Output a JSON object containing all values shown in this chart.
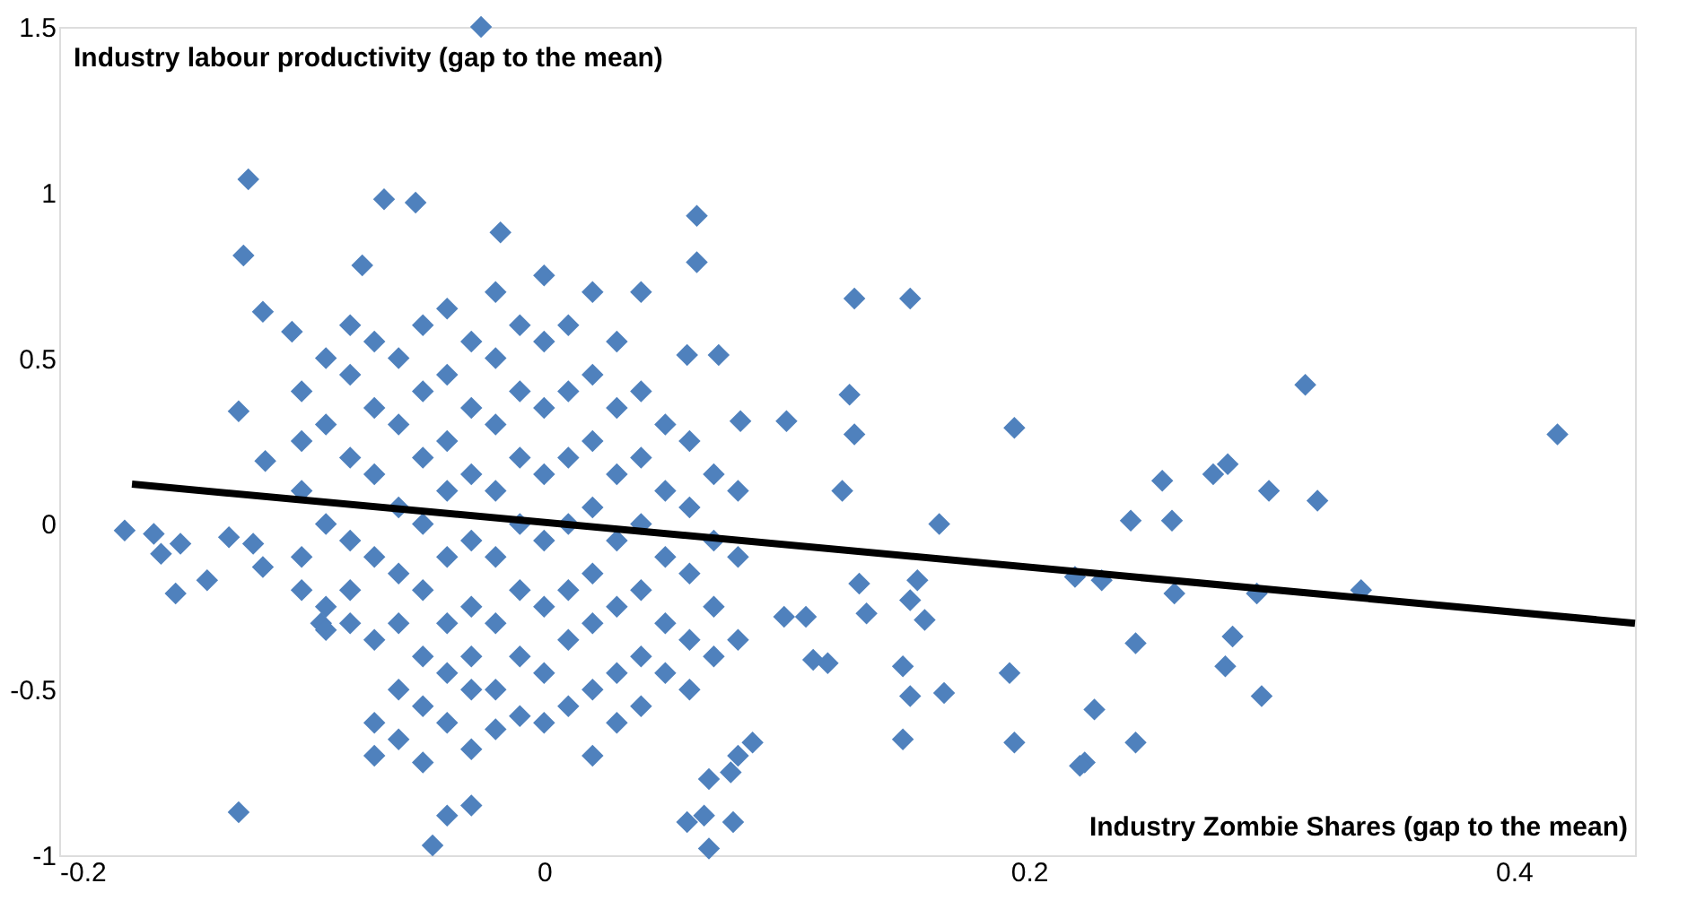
{
  "chart_data": {
    "type": "scatter",
    "xlabel": "Industry Zombie Shares (gap to the mean)",
    "ylabel": "Industry labour productivity  (gap to the mean)",
    "xlim": [
      -0.2,
      0.45
    ],
    "ylim": [
      -1,
      1.5
    ],
    "xticks": [
      -0.2,
      0,
      0.2,
      0.4
    ],
    "yticks": [
      -1,
      -0.5,
      0,
      0.5,
      1,
      1.5
    ],
    "grid": false,
    "series": [
      {
        "marker": "diamond",
        "color": "#4f81bd",
        "x": [
          -0.026,
          -0.122,
          -0.124,
          -0.066,
          -0.053,
          -0.018,
          0.063,
          0.063,
          -0.075,
          -0.116,
          -0.104,
          0.128,
          0.151,
          0.126,
          0.128,
          0.194,
          0.081,
          0.1,
          0.059,
          0.072,
          0.123,
          0.163,
          0.13,
          0.133,
          0.154,
          0.157,
          0.151,
          0.148,
          0.151,
          0.165,
          0.148,
          0.192,
          0.194,
          0.117,
          0.111,
          0.099,
          0.108,
          0.086,
          0.077,
          0.08,
          0.068,
          0.066,
          0.059,
          0.068,
          0.078,
          -0.046,
          -0.126,
          -0.04,
          -0.03,
          0.314,
          0.418,
          0.255,
          0.276,
          0.282,
          0.299,
          0.319,
          0.242,
          0.259,
          0.219,
          0.23,
          0.26,
          0.294,
          0.337,
          0.244,
          0.284,
          0.281,
          0.296,
          0.227,
          0.244,
          0.223,
          0.221,
          -0.173,
          -0.161,
          -0.15,
          -0.158,
          -0.152,
          -0.139,
          -0.13,
          -0.12,
          -0.116,
          -0.126,
          -0.115,
          -0.092,
          -0.1,
          -0.1,
          -0.1,
          -0.1,
          -0.1,
          -0.09,
          -0.09,
          -0.09,
          -0.09,
          -0.09,
          -0.08,
          -0.08,
          -0.08,
          -0.08,
          -0.08,
          -0.08,
          -0.07,
          -0.07,
          -0.07,
          -0.07,
          -0.07,
          -0.07,
          -0.07,
          -0.06,
          -0.06,
          -0.06,
          -0.06,
          -0.06,
          -0.06,
          -0.06,
          -0.05,
          -0.05,
          -0.05,
          -0.05,
          -0.05,
          -0.05,
          -0.05,
          -0.05,
          -0.04,
          -0.04,
          -0.04,
          -0.04,
          -0.04,
          -0.04,
          -0.04,
          -0.04,
          -0.03,
          -0.03,
          -0.03,
          -0.03,
          -0.03,
          -0.03,
          -0.03,
          -0.03,
          -0.02,
          -0.02,
          -0.02,
          -0.02,
          -0.02,
          -0.02,
          -0.02,
          -0.02,
          -0.01,
          -0.01,
          -0.01,
          -0.01,
          -0.01,
          -0.01,
          -0.01,
          0,
          0,
          0,
          0,
          0,
          0,
          0,
          0,
          0.01,
          0.01,
          0.01,
          0.01,
          0.01,
          0.01,
          0.01,
          0.02,
          0.02,
          0.02,
          0.02,
          0.02,
          0.02,
          0.02,
          0.02,
          0.03,
          0.03,
          0.03,
          0.03,
          0.03,
          0.03,
          0.03,
          0.04,
          0.04,
          0.04,
          0.04,
          0.04,
          0.04,
          0.04,
          0.05,
          0.05,
          0.05,
          0.05,
          0.05,
          0.06,
          0.06,
          0.06,
          0.06,
          0.06,
          0.07,
          0.07,
          0.07,
          0.07,
          0.08,
          0.08,
          0.08
        ],
        "values": [
          1.5,
          1.04,
          0.81,
          0.98,
          0.97,
          0.88,
          0.93,
          0.79,
          0.78,
          0.64,
          0.58,
          0.68,
          0.68,
          0.39,
          0.27,
          0.29,
          0.31,
          0.31,
          0.51,
          0.51,
          0.1,
          0.0,
          -0.18,
          -0.27,
          -0.17,
          -0.29,
          -0.23,
          -0.43,
          -0.52,
          -0.51,
          -0.65,
          -0.45,
          -0.66,
          -0.42,
          -0.41,
          -0.28,
          -0.28,
          -0.66,
          -0.75,
          -0.7,
          -0.77,
          -0.88,
          -0.9,
          -0.98,
          -0.9,
          -0.97,
          -0.87,
          -0.88,
          -0.85,
          0.42,
          0.27,
          0.13,
          0.15,
          0.18,
          0.1,
          0.07,
          0.01,
          0.01,
          -0.16,
          -0.17,
          -0.21,
          -0.21,
          -0.2,
          -0.36,
          -0.34,
          -0.43,
          -0.52,
          -0.56,
          -0.66,
          -0.72,
          -0.73,
          -0.02,
          -0.03,
          -0.06,
          -0.09,
          -0.21,
          -0.17,
          -0.04,
          -0.06,
          -0.13,
          0.34,
          0.19,
          -0.3,
          0.4,
          0.25,
          0.1,
          -0.1,
          -0.2,
          0.5,
          0.3,
          0.0,
          -0.25,
          -0.32,
          0.6,
          0.45,
          0.2,
          -0.05,
          -0.2,
          -0.3,
          0.55,
          0.35,
          0.15,
          -0.1,
          -0.35,
          -0.6,
          -0.7,
          0.5,
          0.3,
          0.05,
          -0.15,
          -0.3,
          -0.5,
          -0.65,
          0.6,
          0.4,
          0.2,
          0.0,
          -0.2,
          -0.4,
          -0.55,
          -0.72,
          0.65,
          0.45,
          0.25,
          0.1,
          -0.1,
          -0.3,
          -0.45,
          -0.6,
          0.55,
          0.35,
          0.15,
          -0.05,
          -0.25,
          -0.4,
          -0.5,
          -0.68,
          0.7,
          0.5,
          0.3,
          0.1,
          -0.1,
          -0.3,
          -0.5,
          -0.62,
          0.6,
          0.4,
          0.2,
          0.0,
          -0.2,
          -0.4,
          -0.58,
          0.75,
          0.55,
          0.35,
          0.15,
          -0.05,
          -0.25,
          -0.45,
          -0.6,
          0.6,
          0.4,
          0.2,
          0.0,
          -0.2,
          -0.35,
          -0.55,
          0.7,
          0.45,
          0.25,
          0.05,
          -0.15,
          -0.3,
          -0.5,
          -0.7,
          0.55,
          0.35,
          0.15,
          -0.05,
          -0.25,
          -0.45,
          -0.6,
          0.7,
          0.4,
          0.2,
          0.0,
          -0.2,
          -0.4,
          -0.55,
          0.3,
          0.1,
          -0.1,
          -0.3,
          -0.45,
          0.25,
          0.05,
          -0.15,
          -0.35,
          -0.5,
          0.15,
          -0.05,
          -0.25,
          -0.4,
          0.1,
          -0.1,
          -0.35
        ]
      },
      {
        "type": "line",
        "marker": "none",
        "color": "#000000",
        "x": [
          -0.17,
          0.45
        ],
        "values": [
          0.12,
          -0.3
        ]
      }
    ]
  }
}
